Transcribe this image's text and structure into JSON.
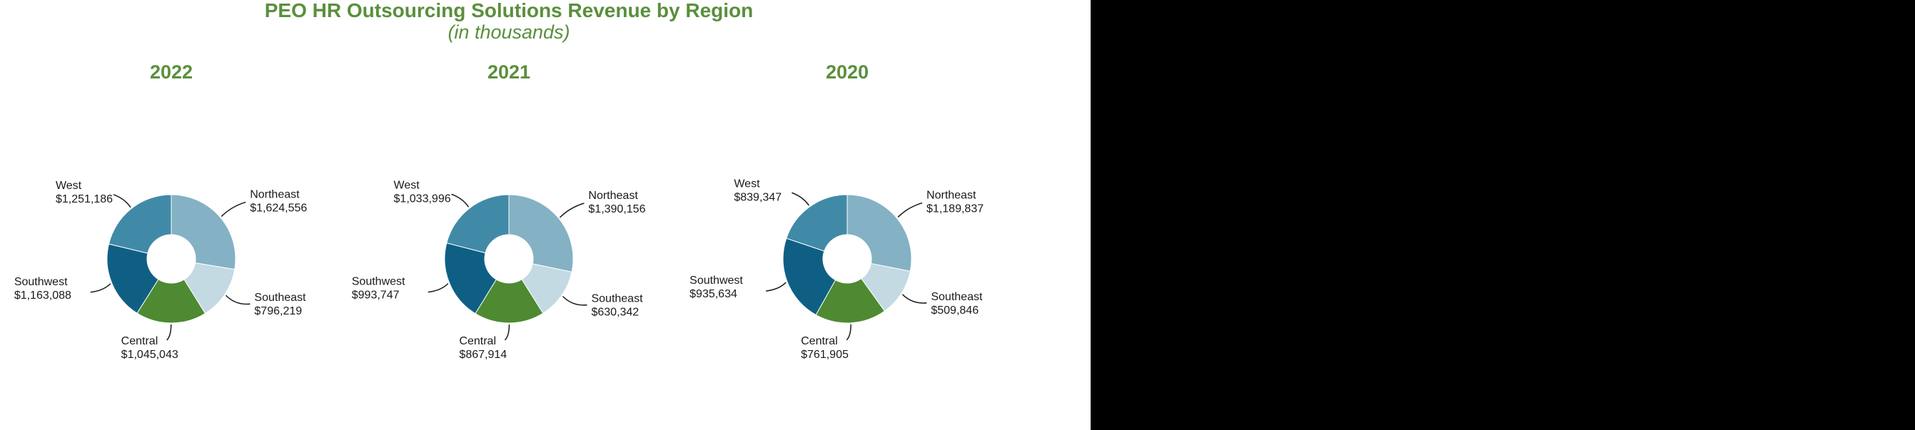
{
  "title": "PEO HR Outsourcing Solutions Revenue by Region",
  "subtitle": "(in thousands)",
  "colors": {
    "title": "#5a8f3c",
    "Northeast": "#84b1c4",
    "Southeast": "#c3dae3",
    "Central": "#4d8a32",
    "Southwest": "#0f5f84",
    "West": "#418aa7",
    "leader": "#1a1a1a",
    "panel": "#000000"
  },
  "chart_data": [
    {
      "type": "pie",
      "title": "2022",
      "categories": [
        "Northeast",
        "Southeast",
        "Central",
        "Southwest",
        "West"
      ],
      "values": [
        1624556,
        796219,
        1045043,
        1163088,
        1251186
      ],
      "value_labels": [
        "$1,624,556",
        "$796,219",
        "$1,045,043",
        "$1,163,088",
        "$1,251,186"
      ]
    },
    {
      "type": "pie",
      "title": "2021",
      "categories": [
        "Northeast",
        "Southeast",
        "Central",
        "Southwest",
        "West"
      ],
      "values": [
        1390156,
        630342,
        867914,
        993747,
        1033996
      ],
      "value_labels": [
        "$1,390,156",
        "$630,342",
        "$867,914",
        "$993,747",
        "$1,033,996"
      ]
    },
    {
      "type": "pie",
      "title": "2020",
      "categories": [
        "Northeast",
        "Southeast",
        "Central",
        "Southwest",
        "West"
      ],
      "values": [
        1189837,
        509846,
        761905,
        935634,
        839347
      ],
      "value_labels": [
        "$1,189,837",
        "$509,846",
        "$761,905",
        "$935,634",
        "$839,347"
      ]
    }
  ]
}
